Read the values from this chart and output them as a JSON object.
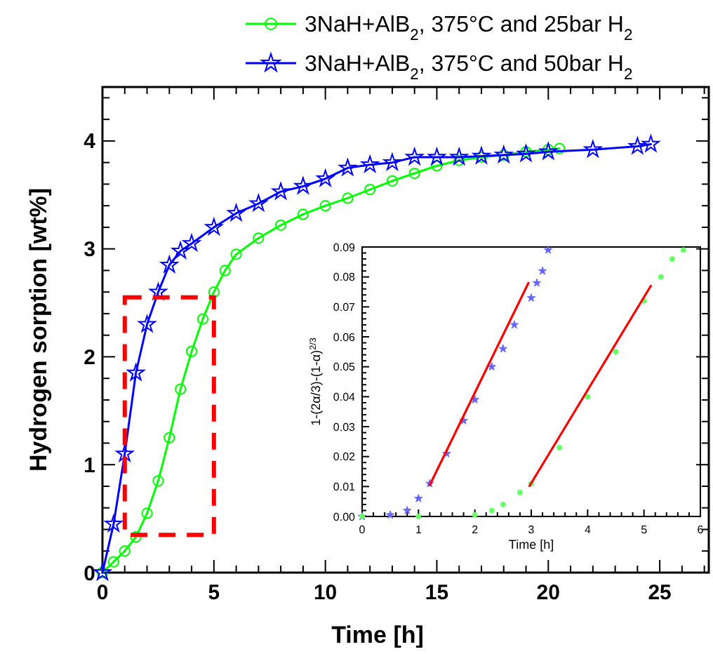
{
  "chart_data": [
    {
      "type": "line",
      "xlabel": "Time [h]",
      "ylabel": "Hydrogen sorption [wt%]",
      "xlim": [
        0,
        27.2
      ],
      "ylim": [
        0,
        4.5
      ],
      "xticks": [
        0,
        5,
        10,
        15,
        20,
        25
      ],
      "yticks": [
        0,
        1,
        2,
        3,
        4
      ],
      "legend": "top right",
      "grid": false,
      "series": [
        {
          "name": "3NaH+AlB$_{2}$, 375°C and 25bar H$_{2}$",
          "color": "#00ff00",
          "marker": "circle",
          "x": [
            0,
            0.5,
            1,
            1.5,
            2,
            2.5,
            3,
            3.5,
            4,
            4.5,
            5,
            5.5,
            6,
            7,
            8,
            9,
            10,
            11,
            12,
            13,
            14,
            15,
            16,
            17,
            18,
            19,
            20,
            20.5
          ],
          "values": [
            0,
            0.1,
            0.2,
            0.33,
            0.55,
            0.85,
            1.25,
            1.7,
            2.05,
            2.35,
            2.6,
            2.8,
            2.95,
            3.1,
            3.22,
            3.32,
            3.4,
            3.47,
            3.55,
            3.63,
            3.7,
            3.77,
            3.82,
            3.85,
            3.87,
            3.9,
            3.92,
            3.93
          ]
        },
        {
          "name": "3NaH+AlB$_{2}$, 375°C and 50bar H$_{2}$",
          "color": "#0000ff",
          "marker": "star",
          "x": [
            0,
            0.5,
            1,
            1.5,
            2,
            2.5,
            3,
            3.5,
            4,
            5,
            6,
            7,
            8,
            9,
            10,
            11,
            12,
            13,
            14,
            15,
            16,
            17,
            18,
            19,
            20,
            22,
            24,
            24.6
          ],
          "values": [
            0,
            0.45,
            1.1,
            1.85,
            2.3,
            2.6,
            2.85,
            2.98,
            3.05,
            3.2,
            3.33,
            3.42,
            3.53,
            3.58,
            3.65,
            3.75,
            3.78,
            3.8,
            3.85,
            3.85,
            3.85,
            3.86,
            3.87,
            3.88,
            3.9,
            3.92,
            3.95,
            3.97
          ]
        }
      ]
    },
    {
      "type": "scatter",
      "xlabel": "Time [h]",
      "ylabel": "1-(2α/3)-(1-α)$^{2/3}$",
      "xlim": [
        0,
        6
      ],
      "ylim": [
        0,
        0.09
      ],
      "xticks": [
        0,
        1,
        2,
        3,
        4,
        5,
        6
      ],
      "yticks": [
        {
          "value": 0,
          "label": "0.00"
        },
        {
          "value": 0.01,
          "label": "0.01"
        },
        {
          "value": 0.02,
          "label": "0.02"
        },
        {
          "value": 0.03,
          "label": "0.03"
        },
        {
          "value": 0.04,
          "label": "0.04"
        },
        {
          "value": 0.05,
          "label": "0.05"
        },
        {
          "value": 0.06,
          "label": "0.06"
        },
        {
          "value": 0.07,
          "label": "0.07"
        },
        {
          "value": 0.08,
          "label": "0.08"
        },
        {
          "value": 0.09,
          "label": "0.09"
        }
      ],
      "legend": false,
      "grid": false,
      "series": [
        {
          "color": "#6666ff",
          "marker": "star",
          "x": [
            0,
            0.5,
            0.8,
            1,
            1.2,
            1.5,
            1.8,
            2,
            2.3,
            2.5,
            2.7,
            3,
            3.1,
            3.2,
            3.3
          ],
          "values": [
            0,
            0.0005,
            0.002,
            0.006,
            0.011,
            0.021,
            0.032,
            0.039,
            0.05,
            0.056,
            0.064,
            0.073,
            0.078,
            0.082,
            0.089
          ]
        },
        {
          "color": "#66ff66",
          "marker": "circle",
          "x": [
            0,
            1,
            2,
            2.3,
            2.5,
            2.8,
            3,
            3.5,
            4,
            4.5,
            5,
            5.3,
            5.5,
            5.7
          ],
          "values": [
            0,
            0,
            0.0005,
            0.002,
            0.004,
            0.008,
            0.011,
            0.023,
            0.04,
            0.055,
            0.072,
            0.08,
            0.086,
            0.089
          ]
        },
        {
          "type": "line",
          "color": "#ff0000",
          "marker": "none",
          "x": [
            1.2,
            2.95
          ],
          "values": [
            0.0105,
            0.078
          ]
        },
        {
          "type": "line",
          "color": "#ff0000",
          "marker": "none",
          "x": [
            2.97,
            5.12
          ],
          "values": [
            0.0102,
            0.077
          ]
        }
      ]
    }
  ]
}
